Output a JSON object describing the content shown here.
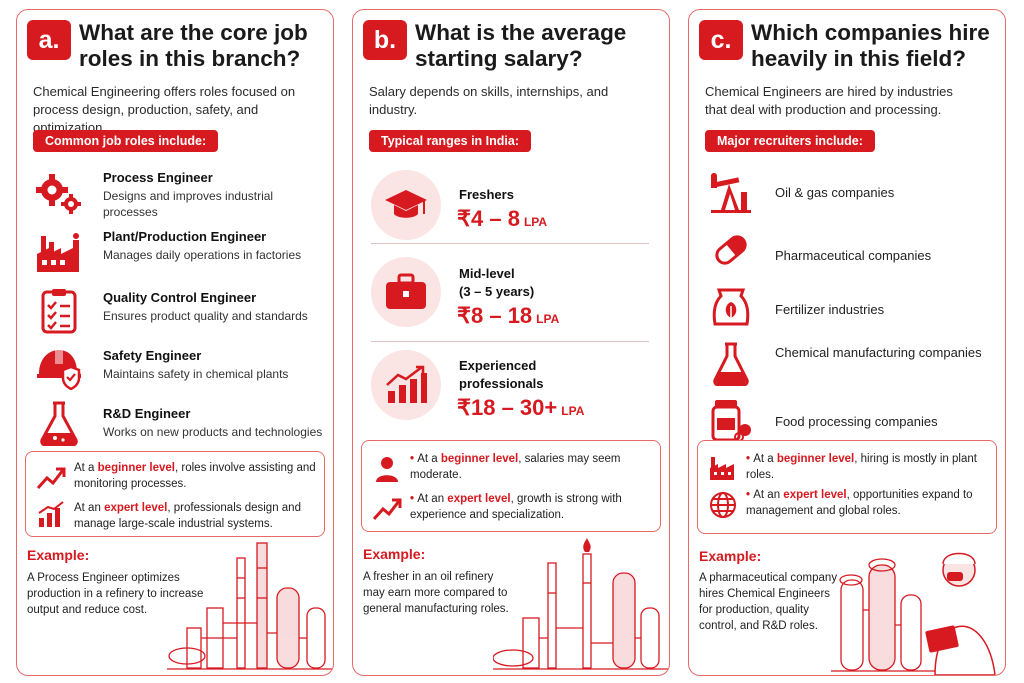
{
  "colors": {
    "accent": "#d71920",
    "border": "#e86a6a",
    "soft": "#fbe4e4"
  },
  "panel_a": {
    "badge": "a.",
    "title": "What are the core job roles in this branch?",
    "intro": "Chemical Engineering offers roles focused on process design, production, safety, and optimization.",
    "pill": "Common job roles include:",
    "roles": [
      {
        "icon": "gears-icon",
        "title": "Process Engineer",
        "desc": "Designs and improves industrial processes"
      },
      {
        "icon": "factory-icon",
        "title": "Plant/Production Engineer",
        "desc": "Manages daily operations in factories"
      },
      {
        "icon": "checklist-icon",
        "title": "Quality Control Engineer",
        "desc": "Ensures product quality and standards"
      },
      {
        "icon": "hardhat-icon",
        "title": "Safety Engineer",
        "desc": "Maintains safety in chemical plants"
      },
      {
        "icon": "flask-icon",
        "title": "R&D Engineer",
        "desc": "Works on new products and technologies"
      }
    ],
    "callout": {
      "beginner_pre": "At a ",
      "beginner_hl": "beginner level",
      "beginner_post": ", roles involve assisting and monitoring processes.",
      "expert_pre": "At an ",
      "expert_hl": "expert level",
      "expert_post": ", professionals design and manage large-scale industrial systems."
    },
    "example_head": "Example:",
    "example_text": "A Process Engineer optimizes production in a refinery to increase output and reduce cost."
  },
  "panel_b": {
    "badge": "b.",
    "title": "What is the average starting salary?",
    "intro": "Salary depends on skills, internships, and industry.",
    "pill": "Typical ranges in India:",
    "levels": [
      {
        "icon": "graduation-cap-icon",
        "label": "Freshers",
        "value": "₹4 – 8",
        "unit": "LPA"
      },
      {
        "icon": "briefcase-icon",
        "label": "Mid-level\n(3 – 5 years)",
        "value": "₹8 – 18",
        "unit": "LPA"
      },
      {
        "icon": "growth-chart-icon",
        "label": "Experienced\nprofessionals",
        "value": "₹18 – 30+",
        "unit": "LPA"
      }
    ],
    "callout": {
      "beginner_pre": "At a ",
      "beginner_hl": "beginner level",
      "beginner_post": ", salaries may seem moderate.",
      "expert_pre": "At an ",
      "expert_hl": "expert level",
      "expert_post": ", growth is strong with experience and specialization."
    },
    "example_head": "Example:",
    "example_text": "A fresher in an oil refinery may earn more compared to general manufacturing roles."
  },
  "panel_c": {
    "badge": "c.",
    "title": "Which companies hire heavily in this field?",
    "intro": "Chemical Engineers are hired by industries that deal with production and processing.",
    "pill": "Major recruiters include:",
    "recruiters": [
      {
        "icon": "oil-pump-icon",
        "label": "Oil & gas companies"
      },
      {
        "icon": "capsule-icon",
        "label": "Pharmaceutical companies"
      },
      {
        "icon": "fertilizer-bag-icon",
        "label": "Fertilizer industries"
      },
      {
        "icon": "flask-icon",
        "label": "Chemical manufacturing companies"
      },
      {
        "icon": "food-jar-icon",
        "label": "Food processing companies"
      }
    ],
    "callout": {
      "beginner_pre": "At a ",
      "beginner_hl": "beginner level",
      "beginner_post": ", hiring is mostly in plant roles.",
      "expert_pre": "At an ",
      "expert_hl": "expert level",
      "expert_post": ", opportunities expand to management and global roles."
    },
    "example_head": "Example:",
    "example_text": "A pharmaceutical company hires Chemical Engineers for production, quality control, and R&D roles."
  }
}
